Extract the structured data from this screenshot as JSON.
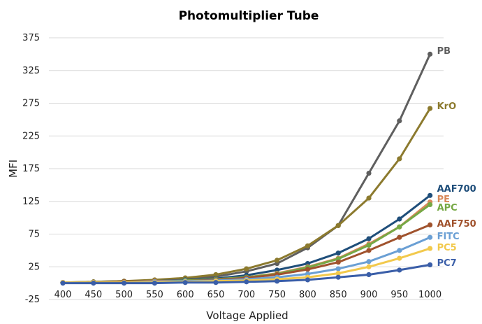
{
  "chart_data": {
    "type": "line",
    "title": "Photomultiplier Tube",
    "xlabel": "Voltage Applied",
    "ylabel": "MFI",
    "x": [
      400,
      450,
      500,
      550,
      600,
      650,
      700,
      750,
      800,
      850,
      900,
      950,
      1000
    ],
    "ylim": [
      -25,
      375
    ],
    "yticks": [
      -25,
      25,
      75,
      125,
      175,
      225,
      275,
      325,
      375
    ],
    "grid": true,
    "legend": "end-of-line labels",
    "series": [
      {
        "name": "PB",
        "color": "#5f5f5f",
        "values": [
          1,
          2,
          3,
          4,
          6,
          10,
          18,
          30,
          54,
          88,
          168,
          248,
          350
        ]
      },
      {
        "name": "KrO",
        "color": "#8c7a2e",
        "values": [
          1,
          2,
          3,
          5,
          8,
          13,
          22,
          35,
          57,
          88,
          130,
          190,
          267
        ]
      },
      {
        "name": "AAF700",
        "color": "#1f4e7a",
        "values": [
          1,
          1,
          2,
          3,
          5,
          7,
          12,
          20,
          30,
          46,
          68,
          98,
          134
        ]
      },
      {
        "name": "PE",
        "color": "#d9895a",
        "values": [
          1,
          1,
          2,
          3,
          4,
          6,
          9,
          15,
          25,
          38,
          60,
          86,
          124
        ]
      },
      {
        "name": "APC",
        "color": "#76a845",
        "values": [
          1,
          1,
          2,
          2,
          4,
          6,
          9,
          14,
          24,
          37,
          58,
          86,
          120
        ]
      },
      {
        "name": "AAF750",
        "color": "#a0522d",
        "values": [
          1,
          1,
          2,
          2,
          3,
          5,
          8,
          13,
          21,
          32,
          50,
          70,
          89
        ]
      },
      {
        "name": "FITC",
        "color": "#6a9fd4",
        "values": [
          1,
          1,
          1,
          2,
          3,
          4,
          6,
          9,
          14,
          22,
          33,
          50,
          70
        ]
      },
      {
        "name": "PC5",
        "color": "#f2c94c",
        "values": [
          1,
          1,
          1,
          1,
          2,
          3,
          4,
          6,
          9,
          15,
          25,
          38,
          53
        ]
      },
      {
        "name": "PC7",
        "color": "#3a5ea8",
        "values": [
          0,
          0,
          0,
          0,
          1,
          1,
          2,
          3,
          5,
          9,
          13,
          20,
          28
        ]
      }
    ]
  }
}
